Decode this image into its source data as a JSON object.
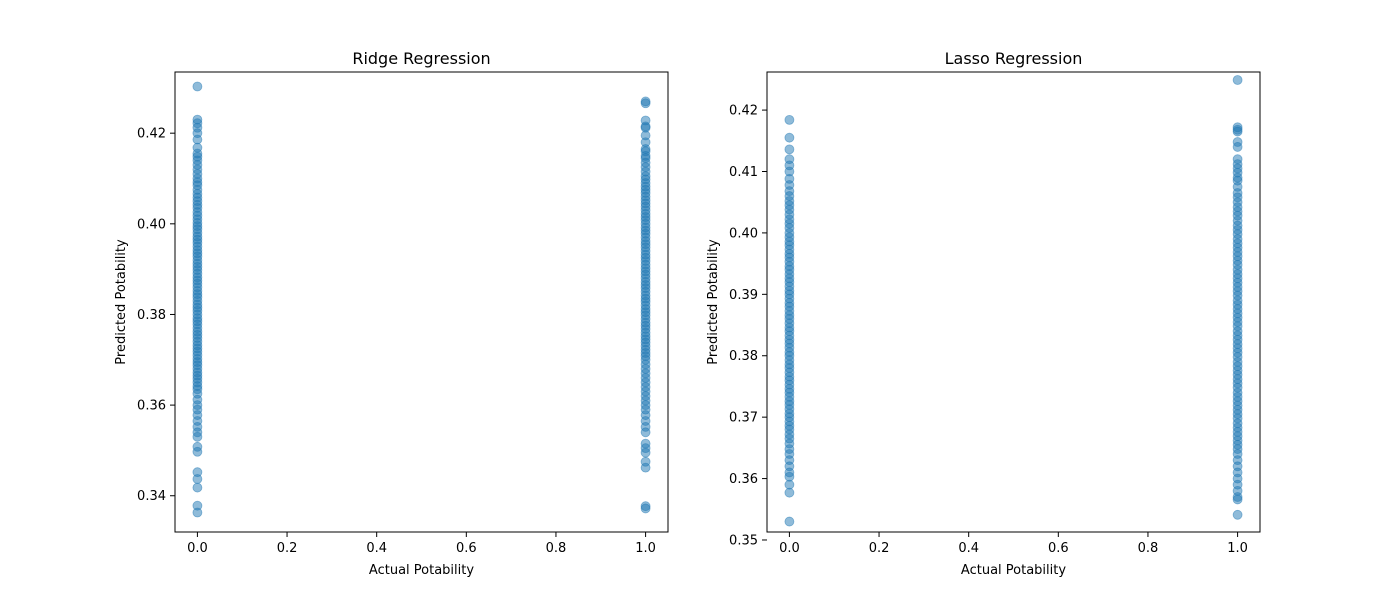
{
  "chart_data": [
    {
      "type": "scatter",
      "title": "Ridge Regression",
      "xlabel": "Actual Potability",
      "ylabel": "Predicted Potability",
      "xlim": [
        -0.05,
        1.05
      ],
      "ylim": [
        0.332,
        0.4335
      ],
      "xticks": [
        0.0,
        0.2,
        0.4,
        0.6,
        0.8,
        1.0
      ],
      "xtick_labels": [
        "0.0",
        "0.2",
        "0.4",
        "0.6",
        "0.8",
        "1.0"
      ],
      "yticks": [
        0.34,
        0.36,
        0.38,
        0.4,
        0.42
      ],
      "ytick_labels": [
        "0.34",
        "0.36",
        "0.38",
        "0.40",
        "0.42"
      ],
      "grid": false,
      "marker_color": "#1f77b4",
      "marker_alpha": 0.5,
      "groups": [
        {
          "x": 0,
          "y": [
            0.4303,
            0.423,
            0.4222,
            0.4212,
            0.42,
            0.4186,
            0.4168,
            0.4155,
            0.4148,
            0.414,
            0.413,
            0.412,
            0.411,
            0.41,
            0.4092,
            0.4085,
            0.4075,
            0.4066,
            0.4058,
            0.405,
            0.4042,
            0.4035,
            0.4026,
            0.4018,
            0.401,
            0.4002,
            0.3995,
            0.3988,
            0.398,
            0.3972,
            0.3965,
            0.3958,
            0.395,
            0.3942,
            0.3935,
            0.3928,
            0.392,
            0.3912,
            0.3905,
            0.3898,
            0.389,
            0.3882,
            0.3875,
            0.3868,
            0.386,
            0.3852,
            0.3845,
            0.3838,
            0.383,
            0.3822,
            0.3815,
            0.3808,
            0.38,
            0.3792,
            0.3785,
            0.3778,
            0.377,
            0.3762,
            0.3755,
            0.3748,
            0.374,
            0.3732,
            0.3725,
            0.3718,
            0.371,
            0.3702,
            0.3695,
            0.3688,
            0.368,
            0.3672,
            0.3665,
            0.3658,
            0.365,
            0.3642,
            0.3635,
            0.3625,
            0.3612,
            0.36,
            0.359,
            0.3578,
            0.3565,
            0.3552,
            0.354,
            0.353,
            0.3508,
            0.3497,
            0.3452,
            0.3437,
            0.3418,
            0.3378,
            0.3363
          ]
        },
        {
          "x": 1,
          "y": [
            0.427,
            0.4266,
            0.4228,
            0.4215,
            0.4212,
            0.4195,
            0.418,
            0.4165,
            0.416,
            0.415,
            0.4145,
            0.4135,
            0.4125,
            0.4115,
            0.4105,
            0.4098,
            0.409,
            0.4082,
            0.4075,
            0.4068,
            0.406,
            0.4052,
            0.4045,
            0.4038,
            0.403,
            0.4022,
            0.4015,
            0.4008,
            0.4,
            0.3992,
            0.3985,
            0.3978,
            0.397,
            0.3962,
            0.3955,
            0.3948,
            0.394,
            0.3932,
            0.3925,
            0.3918,
            0.391,
            0.3902,
            0.3895,
            0.3888,
            0.388,
            0.3872,
            0.3865,
            0.3858,
            0.385,
            0.3842,
            0.3835,
            0.3828,
            0.382,
            0.3812,
            0.3805,
            0.3798,
            0.379,
            0.3782,
            0.3775,
            0.3768,
            0.376,
            0.3752,
            0.3745,
            0.3738,
            0.373,
            0.3722,
            0.3715,
            0.3708,
            0.37,
            0.369,
            0.368,
            0.367,
            0.366,
            0.365,
            0.364,
            0.363,
            0.362,
            0.361,
            0.36,
            0.359,
            0.3578,
            0.3565,
            0.3552,
            0.354,
            0.3515,
            0.3505,
            0.3495,
            0.3475,
            0.3462,
            0.3377,
            0.3372
          ]
        }
      ]
    },
    {
      "type": "scatter",
      "title": "Lasso Regression",
      "xlabel": "Actual Potability",
      "ylabel": "Predicted Potability",
      "xlim": [
        -0.05,
        1.05
      ],
      "ylim": [
        0.3513,
        0.4262
      ],
      "xticks": [
        0.0,
        0.2,
        0.4,
        0.6,
        0.8,
        1.0
      ],
      "xtick_labels": [
        "0.0",
        "0.2",
        "0.4",
        "0.6",
        "0.8",
        "1.0"
      ],
      "yticks": [
        0.35,
        0.36,
        0.37,
        0.38,
        0.39,
        0.4,
        0.41,
        0.42
      ],
      "ytick_labels": [
        "0.35",
        "0.36",
        "0.37",
        "0.38",
        "0.39",
        "0.40",
        "0.41",
        "0.42"
      ],
      "grid": false,
      "marker_color": "#1f77b4",
      "marker_alpha": 0.5,
      "groups": [
        {
          "x": 0,
          "y": [
            0.4184,
            0.4155,
            0.4136,
            0.412,
            0.411,
            0.41,
            0.4088,
            0.4078,
            0.4068,
            0.406,
            0.4052,
            0.4045,
            0.4038,
            0.403,
            0.4022,
            0.4015,
            0.4008,
            0.4,
            0.3993,
            0.3986,
            0.398,
            0.3973,
            0.3966,
            0.396,
            0.3953,
            0.3946,
            0.394,
            0.3933,
            0.3926,
            0.392,
            0.3913,
            0.3906,
            0.39,
            0.3893,
            0.3886,
            0.388,
            0.3873,
            0.3866,
            0.386,
            0.3853,
            0.3846,
            0.384,
            0.3833,
            0.3826,
            0.382,
            0.3813,
            0.3806,
            0.38,
            0.3793,
            0.3786,
            0.378,
            0.3773,
            0.3766,
            0.376,
            0.3753,
            0.3746,
            0.374,
            0.3733,
            0.3726,
            0.372,
            0.3713,
            0.3706,
            0.37,
            0.3693,
            0.3686,
            0.368,
            0.3672,
            0.3665,
            0.3657,
            0.3648,
            0.364,
            0.363,
            0.362,
            0.361,
            0.3603,
            0.359,
            0.3577,
            0.353
          ]
        },
        {
          "x": 1,
          "y": [
            0.4249,
            0.4172,
            0.4168,
            0.4165,
            0.4148,
            0.414,
            0.412,
            0.4112,
            0.4105,
            0.4098,
            0.409,
            0.4085,
            0.4075,
            0.4065,
            0.4058,
            0.405,
            0.4042,
            0.4035,
            0.4028,
            0.402,
            0.4012,
            0.4005,
            0.3998,
            0.399,
            0.3983,
            0.3976,
            0.3969,
            0.3962,
            0.3955,
            0.3948,
            0.394,
            0.3933,
            0.3926,
            0.3919,
            0.3912,
            0.3905,
            0.3898,
            0.389,
            0.3883,
            0.3876,
            0.3869,
            0.3862,
            0.3855,
            0.3848,
            0.384,
            0.3833,
            0.3826,
            0.3819,
            0.3812,
            0.3805,
            0.3798,
            0.379,
            0.3783,
            0.3776,
            0.3769,
            0.3762,
            0.3755,
            0.3748,
            0.374,
            0.3733,
            0.3726,
            0.3719,
            0.3712,
            0.3705,
            0.3698,
            0.369,
            0.3683,
            0.3676,
            0.3669,
            0.3662,
            0.3655,
            0.3648,
            0.364,
            0.363,
            0.362,
            0.361,
            0.36,
            0.359,
            0.358,
            0.357,
            0.3566,
            0.3541
          ]
        }
      ]
    }
  ]
}
